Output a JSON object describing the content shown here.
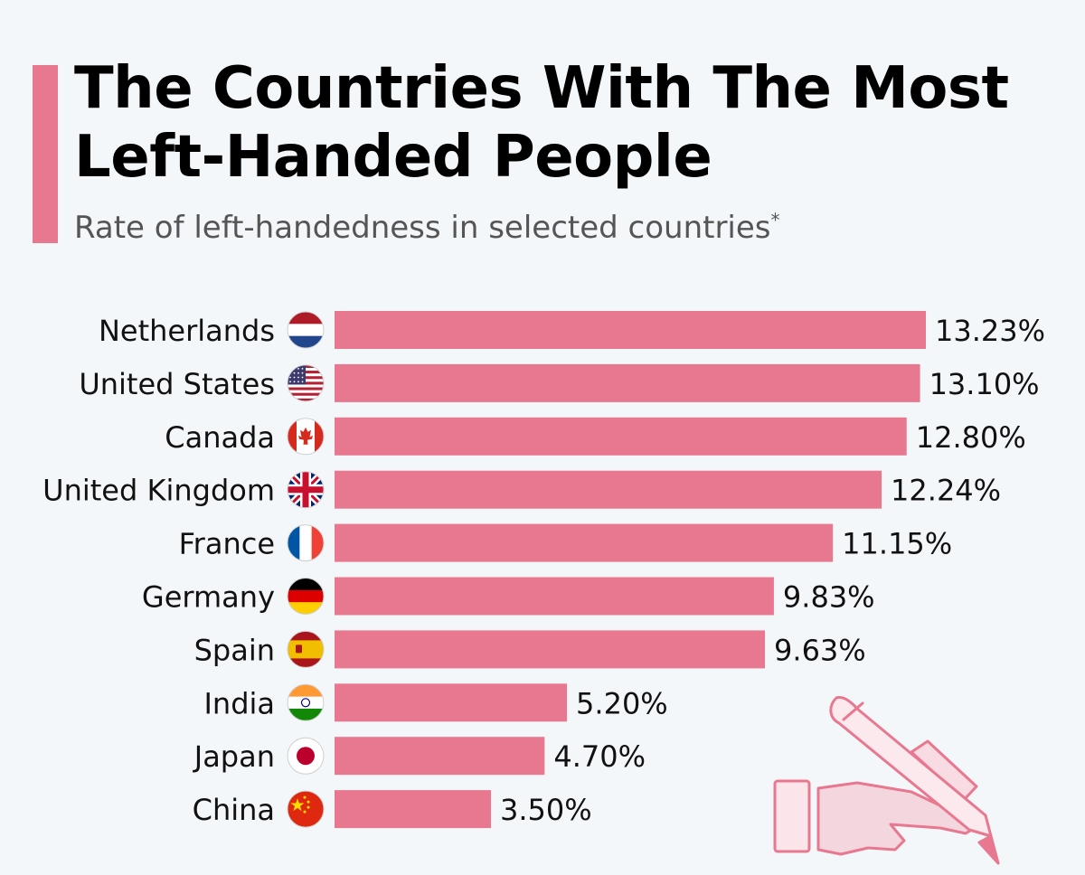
{
  "header": {
    "title": "The Countries With The Most Left-Handed People",
    "subtitle": "Rate of left-handedness in selected countries",
    "subtitle_mark": "*"
  },
  "colors": {
    "bar": "#e87890",
    "accent": "#e87890",
    "background": "#f4f7fa"
  },
  "chart_data": {
    "type": "bar",
    "orientation": "horizontal",
    "title": "The Countries With The Most Left-Handed People",
    "subtitle": "Rate of left-handedness in selected countries",
    "xlabel": "",
    "ylabel": "",
    "unit": "%",
    "xlim": [
      0,
      13.23
    ],
    "categories": [
      "Netherlands",
      "United States",
      "Canada",
      "United Kingdom",
      "France",
      "Germany",
      "Spain",
      "India",
      "Japan",
      "China"
    ],
    "values": [
      13.23,
      13.1,
      12.8,
      12.24,
      11.15,
      9.83,
      9.63,
      5.2,
      4.7,
      3.5
    ],
    "value_labels": [
      "13.23%",
      "13.10%",
      "12.80%",
      "12.24%",
      "11.15%",
      "9.83%",
      "9.63%",
      "5.20%",
      "4.70%",
      "3.50%"
    ],
    "flag_icons": [
      "netherlands-flag-icon",
      "united-states-flag-icon",
      "canada-flag-icon",
      "united-kingdom-flag-icon",
      "france-flag-icon",
      "germany-flag-icon",
      "spain-flag-icon",
      "india-flag-icon",
      "japan-flag-icon",
      "china-flag-icon"
    ]
  },
  "illustration": {
    "icon": "hand-writing-pen-icon"
  }
}
